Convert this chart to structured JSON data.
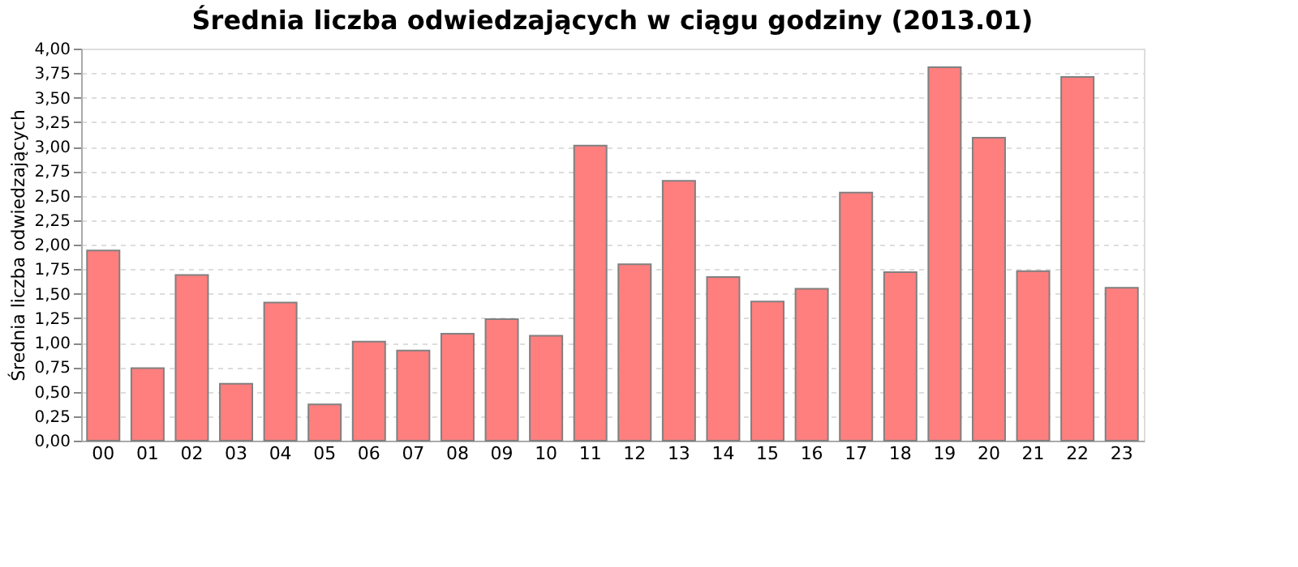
{
  "chart_data": {
    "type": "bar",
    "title": "Średnia liczba odwiedzających w ciągu godziny (2013.01)",
    "ylabel": "Średnia liczba odwiedzających",
    "categories": [
      "00",
      "01",
      "02",
      "03",
      "04",
      "05",
      "06",
      "07",
      "08",
      "09",
      "10",
      "11",
      "12",
      "13",
      "14",
      "15",
      "16",
      "17",
      "18",
      "19",
      "20",
      "21",
      "22",
      "23"
    ],
    "values": [
      1.94,
      0.74,
      1.69,
      0.58,
      1.41,
      0.37,
      1.01,
      0.92,
      1.09,
      1.24,
      1.07,
      3.01,
      1.8,
      2.65,
      1.67,
      1.42,
      1.55,
      2.53,
      1.72,
      3.81,
      3.09,
      1.73,
      3.71,
      1.56
    ],
    "color": "#ff7f7f",
    "ylim": [
      0,
      4
    ],
    "yticks": [
      {
        "value": 0,
        "label": "0,00"
      },
      {
        "value": 0.25,
        "label": "0,25"
      },
      {
        "value": 0.5,
        "label": "0,50"
      },
      {
        "value": 0.75,
        "label": "0,75"
      },
      {
        "value": 1,
        "label": "1,00"
      },
      {
        "value": 1.25,
        "label": "1,25"
      },
      {
        "value": 1.5,
        "label": "1,50"
      },
      {
        "value": 1.75,
        "label": "1,75"
      },
      {
        "value": 2,
        "label": "2,00"
      },
      {
        "value": 2.25,
        "label": "2,25"
      },
      {
        "value": 2.5,
        "label": "2,50"
      },
      {
        "value": 2.75,
        "label": "2,75"
      },
      {
        "value": 3,
        "label": "3,00"
      },
      {
        "value": 3.25,
        "label": "3,25"
      },
      {
        "value": 3.5,
        "label": "3,50"
      },
      {
        "value": 3.75,
        "label": "3,75"
      },
      {
        "value": 4,
        "label": "4,00"
      }
    ],
    "grid": "y"
  }
}
